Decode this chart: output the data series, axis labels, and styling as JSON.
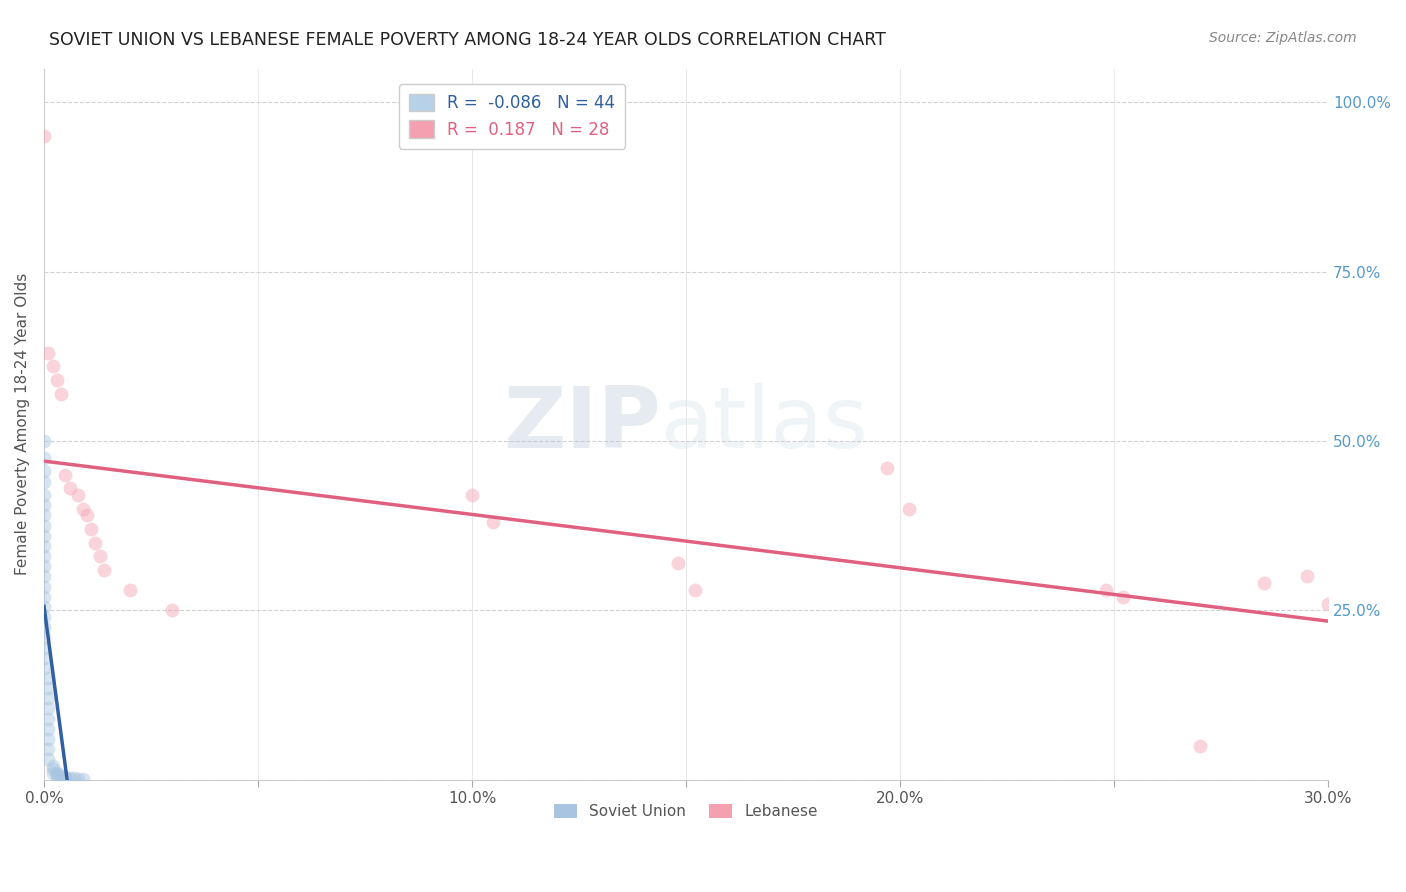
{
  "title": "SOVIET UNION VS LEBANESE FEMALE POVERTY AMONG 18-24 YEAR OLDS CORRELATION CHART",
  "source": "Source: ZipAtlas.com",
  "ylabel": "Female Poverty Among 18-24 Year Olds",
  "xlim": [
    0.0,
    0.3
  ],
  "ylim": [
    0.0,
    1.05
  ],
  "xticks": [
    0.0,
    0.05,
    0.1,
    0.15,
    0.2,
    0.25,
    0.3
  ],
  "xlabels": [
    "0.0%",
    "",
    "10.0%",
    "",
    "20.0%",
    "",
    "30.0%"
  ],
  "yticks": [
    0.0,
    0.25,
    0.5,
    0.75,
    1.0
  ],
  "yticks_right": [
    0.25,
    0.5,
    0.75,
    1.0
  ],
  "ylabels_right": [
    "25.0%",
    "50.0%",
    "75.0%",
    "100.0%"
  ],
  "soviet_x": [
    0.0,
    0.0,
    0.0,
    0.0,
    0.0,
    0.0,
    0.0,
    0.0,
    0.0,
    0.0,
    0.0,
    0.0,
    0.0,
    0.0,
    0.0,
    0.0,
    0.0,
    0.0,
    0.0,
    0.0,
    0.0,
    0.0,
    0.001,
    0.001,
    0.001,
    0.001,
    0.001,
    0.001,
    0.001,
    0.001,
    0.001,
    0.002,
    0.002,
    0.002,
    0.003,
    0.003,
    0.003,
    0.004,
    0.005,
    0.005,
    0.006,
    0.007,
    0.008,
    0.009
  ],
  "soviet_y": [
    0.5,
    0.475,
    0.455,
    0.44,
    0.42,
    0.405,
    0.39,
    0.375,
    0.36,
    0.345,
    0.33,
    0.315,
    0.3,
    0.285,
    0.27,
    0.255,
    0.24,
    0.225,
    0.21,
    0.195,
    0.18,
    0.165,
    0.15,
    0.135,
    0.12,
    0.105,
    0.09,
    0.075,
    0.06,
    0.045,
    0.03,
    0.02,
    0.015,
    0.01,
    0.01,
    0.008,
    0.006,
    0.005,
    0.004,
    0.003,
    0.002,
    0.002,
    0.001,
    0.001
  ],
  "lebanese_x": [
    0.0,
    0.001,
    0.002,
    0.003,
    0.004,
    0.005,
    0.006,
    0.008,
    0.009,
    0.01,
    0.011,
    0.012,
    0.013,
    0.014,
    0.02,
    0.03,
    0.1,
    0.105,
    0.148,
    0.152,
    0.197,
    0.202,
    0.248,
    0.252,
    0.27,
    0.285,
    0.295,
    0.3
  ],
  "lebanese_y": [
    0.95,
    0.63,
    0.61,
    0.59,
    0.57,
    0.45,
    0.43,
    0.42,
    0.4,
    0.39,
    0.37,
    0.35,
    0.33,
    0.31,
    0.28,
    0.25,
    0.42,
    0.38,
    0.32,
    0.28,
    0.46,
    0.4,
    0.28,
    0.27,
    0.05,
    0.29,
    0.3,
    0.26
  ],
  "soviet_color": "#a8c4e0",
  "lebanese_color": "#f4a0b0",
  "soviet_line_solid_color": "#3060a0",
  "soviet_line_dash_color": "#8ab0d8",
  "lebanese_line_color": "#e06080",
  "soviet_R": -0.086,
  "soviet_N": 44,
  "lebanese_R": 0.187,
  "lebanese_N": 28,
  "watermark_zip": "ZIP",
  "watermark_atlas": "atlas",
  "background_color": "#ffffff",
  "grid_color": "#cccccc",
  "marker_size": 100,
  "marker_alpha": 0.45,
  "legend_box_color_soviet": "#b8d0e8",
  "legend_box_color_lebanese": "#f4a0b0",
  "legend_text_color_soviet": "#3060a0",
  "legend_text_color_lebanese": "#e06080"
}
